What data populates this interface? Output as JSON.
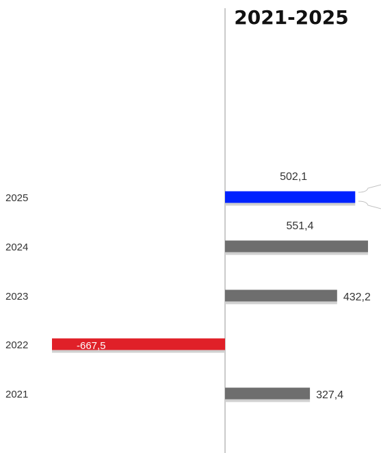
{
  "chart_data": {
    "type": "bar",
    "orientation": "horizontal",
    "title": "2021-2025",
    "xlabel": "",
    "ylabel": "",
    "categories": [
      "2025",
      "2024",
      "2023",
      "2022",
      "2021"
    ],
    "values": [
      502.1,
      551.4,
      432.2,
      -667.5,
      327.4
    ],
    "value_labels": [
      "502,1",
      "551,4",
      "432,2",
      "-667,5",
      "327,4"
    ],
    "bar_colors": [
      "#0022ff",
      "#6e6e6e",
      "#6e6e6e",
      "#e02028",
      "#6e6e6e"
    ],
    "shadow_color": "#d0d0d0",
    "axis_color": "#b8b8b8",
    "grid": false,
    "legend": "none"
  }
}
